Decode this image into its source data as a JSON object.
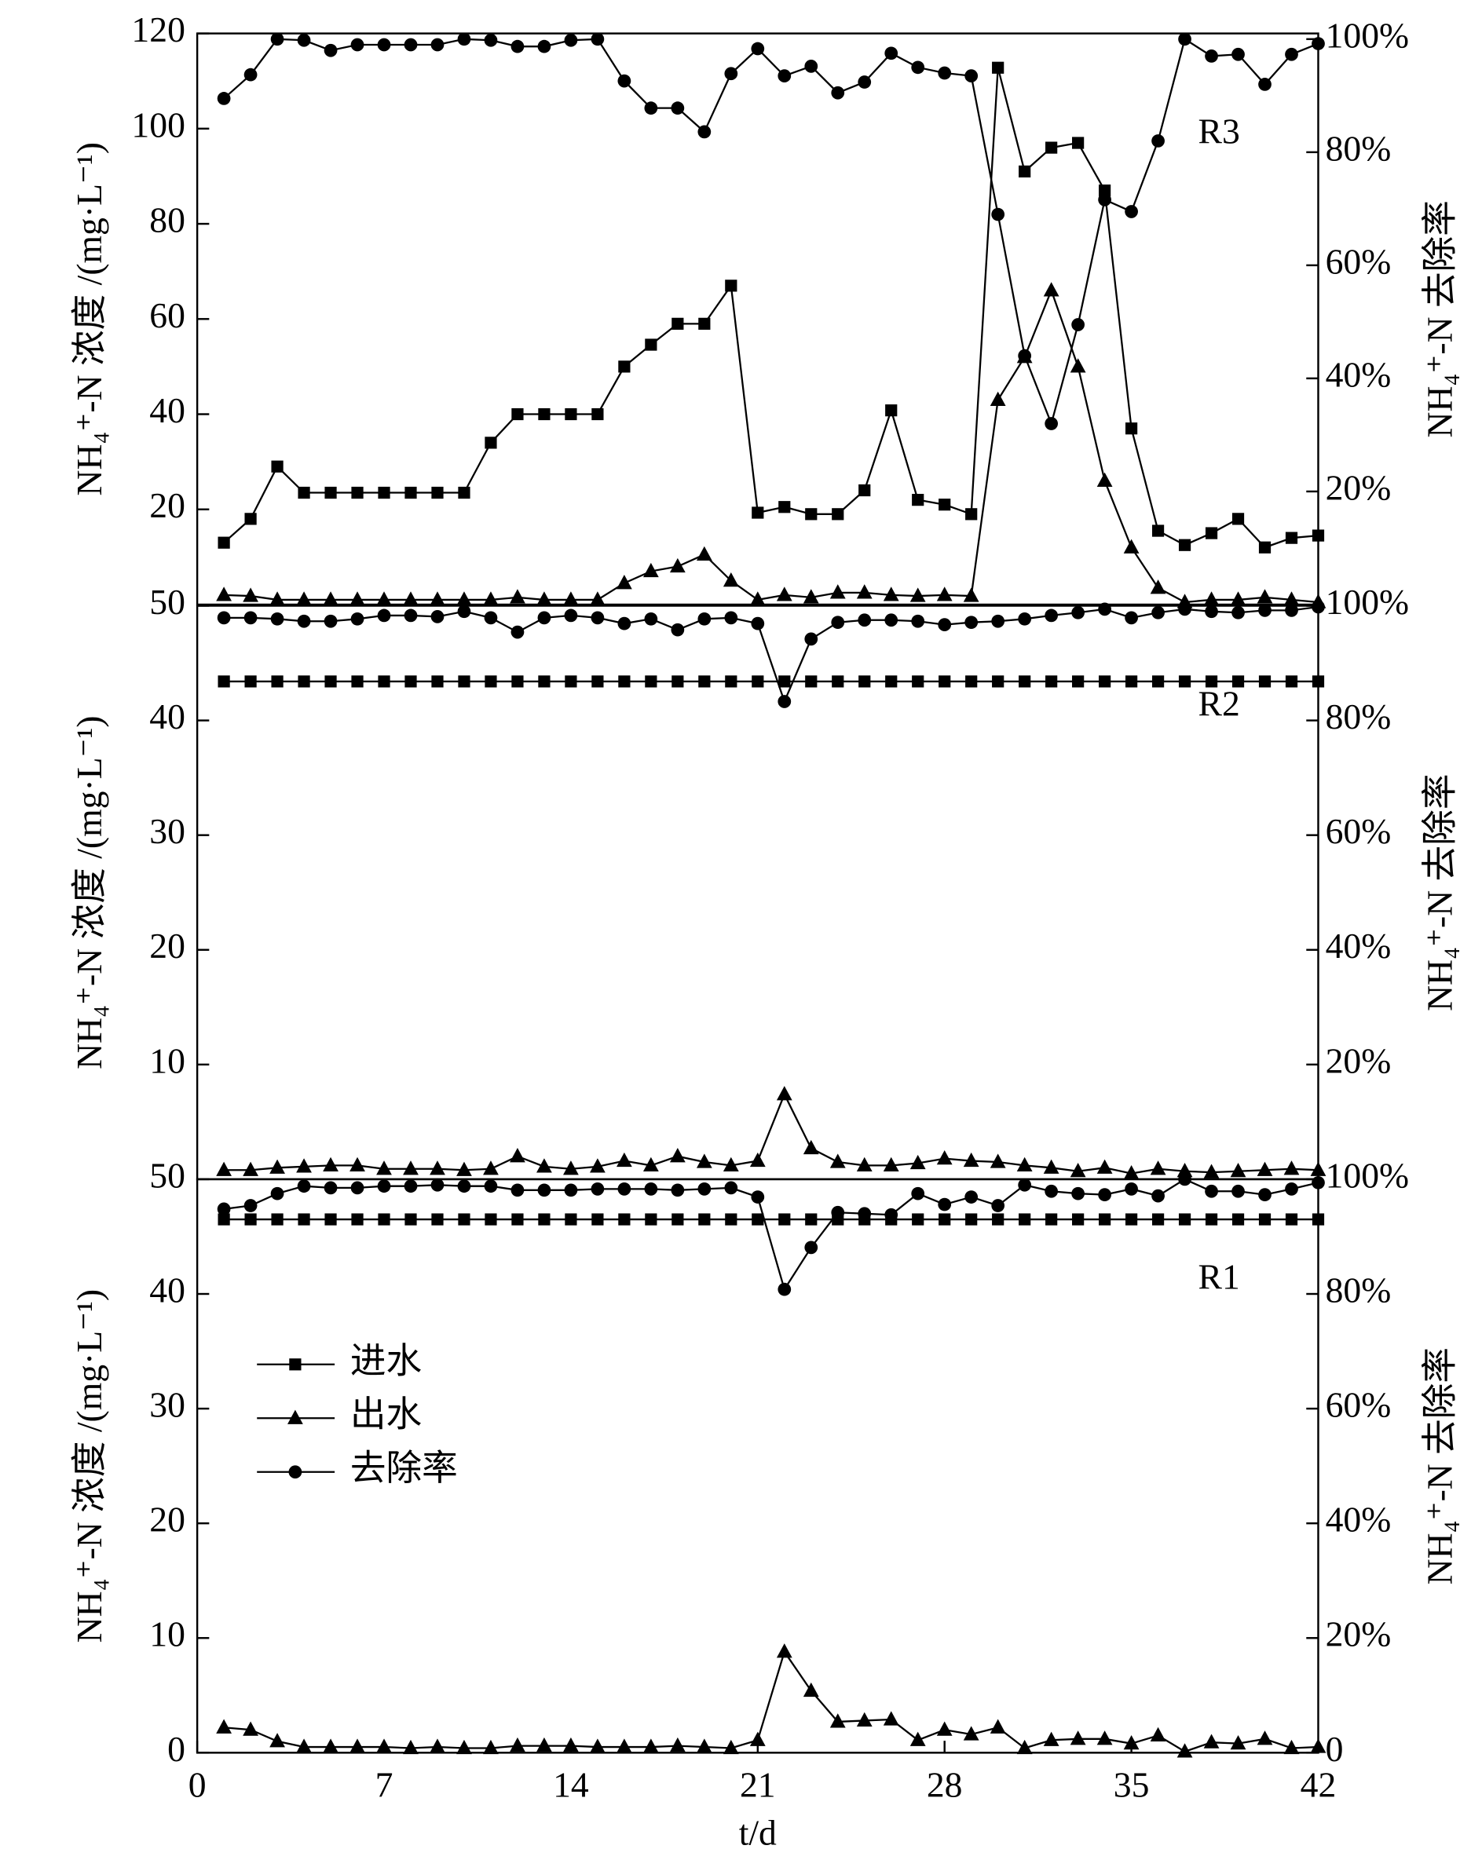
{
  "chart_data": [
    {
      "type": "line",
      "panel_label": "R3",
      "ylabel": "NH₄⁺-N 浓度 /(mg·L⁻¹)",
      "y2label": "NH₄⁺-N 去除率",
      "ylim": [
        0,
        120
      ],
      "yticks": [
        20,
        40,
        60,
        80,
        100,
        120
      ],
      "y2lim": [
        0,
        101
      ],
      "y2ticks": [
        {
          "value": 20,
          "label": "20%"
        },
        {
          "value": 40,
          "label": "40%"
        },
        {
          "value": 60,
          "label": "60%"
        },
        {
          "value": 80,
          "label": "80%"
        },
        {
          "value": 100,
          "label": "100%"
        }
      ],
      "xlim": [
        0,
        42
      ],
      "x": [
        1,
        2,
        3,
        4,
        5,
        6,
        7,
        8,
        9,
        10,
        11,
        12,
        13,
        14,
        15,
        16,
        17,
        18,
        19,
        20,
        21,
        22,
        23,
        24,
        25,
        26,
        27,
        28,
        29,
        30,
        31,
        32,
        33,
        34,
        35,
        36,
        37,
        38,
        39,
        40,
        41,
        42
      ],
      "series": [
        {
          "color": "#000000",
          "marker": "square",
          "values": [
            13,
            18,
            29,
            23.5,
            23.5,
            23.5,
            23.5,
            23.5,
            23.5,
            23.5,
            34,
            40,
            40,
            40,
            40,
            50,
            54.6,
            59,
            59,
            67,
            19.3,
            20.5,
            19,
            19,
            24,
            40.8,
            22,
            21,
            19,
            112.8,
            91,
            96,
            97,
            87,
            37,
            15.5,
            12.5,
            15,
            18,
            12,
            14,
            14.5
          ]
        },
        {
          "color": "#000000",
          "marker": "triangle",
          "values": [
            2,
            1.8,
            1,
            1,
            1,
            1,
            1,
            1,
            1,
            1,
            1,
            1.5,
            1,
            1,
            1,
            4.5,
            7,
            8,
            10.5,
            5,
            1,
            2,
            1.5,
            2.5,
            2.5,
            2,
            1.8,
            2,
            1.8,
            43,
            52,
            66,
            50,
            26,
            12,
            3.5,
            0.5,
            1,
            1,
            1.5,
            1,
            0.5
          ]
        },
        {
          "color": "#000000",
          "marker": "circle",
          "axis": "y2",
          "values": [
            89.5,
            93.7,
            100,
            99.8,
            98,
            99,
            99,
            99,
            99,
            100,
            99.8,
            98.7,
            98.7,
            99.8,
            100,
            92.6,
            87.8,
            87.8,
            83.6,
            93.9,
            98.3,
            93.5,
            95.2,
            90.5,
            92.4,
            97.5,
            95,
            94,
            93.5,
            69,
            44,
            32,
            49.5,
            71.6,
            69.5,
            82,
            100,
            97,
            97.3,
            92,
            97.3,
            99.2
          ]
        }
      ]
    },
    {
      "type": "line",
      "panel_label": "R2",
      "ylabel": "NH₄⁺-N 浓度 /(mg·L⁻¹)",
      "y2label": "NH₄⁺-N 去除率",
      "ylim": [
        0,
        50
      ],
      "yticks": [
        10,
        20,
        30,
        40,
        50
      ],
      "y2lim": [
        0,
        100
      ],
      "y2ticks": [
        {
          "value": 20,
          "label": "20%"
        },
        {
          "value": 40,
          "label": "40%"
        },
        {
          "value": 60,
          "label": "60%"
        },
        {
          "value": 80,
          "label": "80%"
        },
        {
          "value": 100,
          "label": "100%"
        }
      ],
      "xlim": [
        0,
        42
      ],
      "x": [
        1,
        2,
        3,
        4,
        5,
        6,
        7,
        8,
        9,
        10,
        11,
        12,
        13,
        14,
        15,
        16,
        17,
        18,
        19,
        20,
        21,
        22,
        23,
        24,
        25,
        26,
        27,
        28,
        29,
        30,
        31,
        32,
        33,
        34,
        35,
        36,
        37,
        38,
        39,
        40,
        41,
        42
      ],
      "series": [
        {
          "color": "#000000",
          "marker": "square",
          "values": [
            43.4,
            43.4,
            43.4,
            43.4,
            43.4,
            43.4,
            43.4,
            43.4,
            43.4,
            43.4,
            43.4,
            43.4,
            43.4,
            43.4,
            43.4,
            43.4,
            43.4,
            43.4,
            43.4,
            43.4,
            43.4,
            43.4,
            43.4,
            43.4,
            43.4,
            43.4,
            43.4,
            43.4,
            43.4,
            43.4,
            43.4,
            43.4,
            43.4,
            43.4,
            43.4,
            43.4,
            43.4,
            43.4,
            43.4,
            43.4,
            43.4,
            43.4
          ]
        },
        {
          "color": "#000000",
          "marker": "triangle",
          "values": [
            0.8,
            0.8,
            1,
            1.1,
            1.2,
            1.2,
            0.9,
            0.9,
            0.9,
            0.8,
            0.9,
            2,
            1.1,
            0.9,
            1.1,
            1.6,
            1.2,
            2,
            1.5,
            1.2,
            1.6,
            7.4,
            2.7,
            1.5,
            1.2,
            1.2,
            1.4,
            1.8,
            1.6,
            1.5,
            1.2,
            1,
            0.7,
            1,
            0.5,
            0.9,
            0.7,
            0.6,
            0.7,
            0.8,
            0.9,
            0.8
          ]
        },
        {
          "color": "#000000",
          "marker": "circle",
          "axis": "y2",
          "values": [
            97.9,
            97.9,
            97.7,
            97.3,
            97.3,
            97.7,
            98.3,
            98.3,
            98.1,
            99,
            97.9,
            95.4,
            97.9,
            98.3,
            97.9,
            96.9,
            97.7,
            95.8,
            97.7,
            97.9,
            96.9,
            83.3,
            94.2,
            97.1,
            97.5,
            97.5,
            97.3,
            96.7,
            97.1,
            97.3,
            97.7,
            98.3,
            98.8,
            99.4,
            97.9,
            98.8,
            99.4,
            99,
            98.8,
            99.2,
            99.2,
            99.8
          ]
        }
      ]
    },
    {
      "type": "line",
      "panel_label": "R1",
      "ylabel": "NH₄⁺-N 浓度 /(mg·L⁻¹)",
      "y2label": "NH₄⁺-N 去除率",
      "xlabel": "t/d",
      "ylim": [
        0,
        50
      ],
      "yticks": [
        0,
        10,
        20,
        30,
        40,
        50
      ],
      "y2lim": [
        0,
        100
      ],
      "y2ticks": [
        0,
        {
          "value": 20,
          "label": "20%"
        },
        {
          "value": 40,
          "label": "40%"
        },
        {
          "value": 60,
          "label": "60%"
        },
        {
          "value": 80,
          "label": "80%"
        },
        {
          "value": 100,
          "label": "100%"
        }
      ],
      "xlim": [
        0,
        42
      ],
      "xticks": [
        0,
        7,
        14,
        21,
        28,
        35,
        42
      ],
      "legend": "upper left",
      "x": [
        1,
        2,
        3,
        4,
        5,
        6,
        7,
        8,
        9,
        10,
        11,
        12,
        13,
        14,
        15,
        16,
        17,
        18,
        19,
        20,
        21,
        22,
        23,
        24,
        25,
        26,
        27,
        28,
        29,
        30,
        31,
        32,
        33,
        34,
        35,
        36,
        37,
        38,
        39,
        40,
        41,
        42
      ],
      "series": [
        {
          "name": "进水",
          "color": "#000000",
          "marker": "square",
          "values": [
            46.5,
            46.5,
            46.5,
            46.5,
            46.5,
            46.5,
            46.5,
            46.5,
            46.5,
            46.5,
            46.5,
            46.5,
            46.5,
            46.5,
            46.5,
            46.5,
            46.5,
            46.5,
            46.5,
            46.5,
            46.5,
            46.5,
            46.5,
            46.5,
            46.5,
            46.5,
            46.5,
            46.5,
            46.5,
            46.5,
            46.5,
            46.5,
            46.5,
            46.5,
            46.5,
            46.5,
            46.5,
            46.5,
            46.5,
            46.5,
            46.5,
            46.5
          ]
        },
        {
          "name": "出水",
          "color": "#000000",
          "marker": "triangle",
          "values": [
            2.2,
            2,
            1,
            0.5,
            0.5,
            0.5,
            0.5,
            0.4,
            0.5,
            0.4,
            0.4,
            0.6,
            0.6,
            0.6,
            0.5,
            0.5,
            0.5,
            0.6,
            0.5,
            0.4,
            1.1,
            8.8,
            5.4,
            2.7,
            2.8,
            2.9,
            1.1,
            2,
            1.6,
            2.2,
            0.4,
            1.1,
            1.2,
            1.2,
            0.8,
            1.5,
            0.1,
            0.9,
            0.8,
            1.2,
            0.4,
            0.5
          ]
        },
        {
          "name": "去除率",
          "color": "#000000",
          "marker": "circle",
          "axis": "y2",
          "values": [
            94.8,
            95.4,
            97.5,
            98.8,
            98.5,
            98.5,
            98.8,
            98.8,
            99,
            98.8,
            98.8,
            98.1,
            98.1,
            98.1,
            98.3,
            98.3,
            98.3,
            98.1,
            98.3,
            98.5,
            96.9,
            80.8,
            88.1,
            94.2,
            94,
            93.8,
            97.5,
            95.6,
            96.9,
            95.4,
            99,
            97.9,
            97.5,
            97.3,
            98.3,
            97.1,
            100,
            97.9,
            97.9,
            97.3,
            98.3,
            99.4
          ]
        }
      ]
    }
  ]
}
